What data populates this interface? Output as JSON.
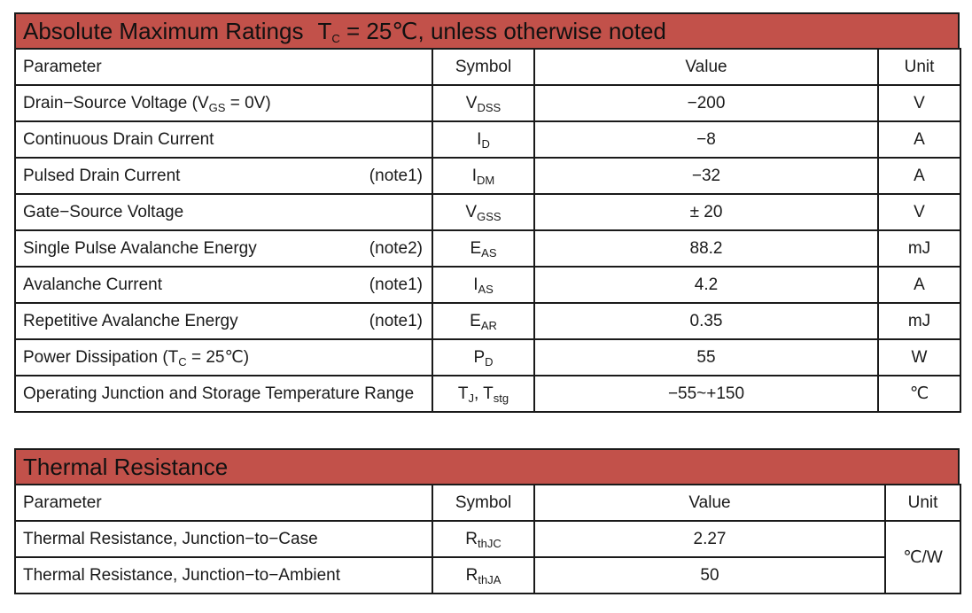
{
  "absolute_max": {
    "title": "Absolute Maximum Ratings",
    "cond_prefix": "T",
    "cond_sub": "C",
    "cond_suffix": " = 25℃, unless otherwise noted",
    "headers": {
      "parameter": "Parameter",
      "symbol": "Symbol",
      "value": "Value",
      "unit": "Unit"
    },
    "rows": [
      {
        "param": "Drain−Source Voltage (V",
        "param_sub": "GS",
        "param_tail": " = 0V)",
        "note": "",
        "sym": "V",
        "sym_sub": "DSS",
        "sym2": "",
        "sym2_sub": "",
        "value": "−200",
        "unit": "V"
      },
      {
        "param": "Continuous Drain Current",
        "param_sub": "",
        "param_tail": "",
        "note": "",
        "sym": "I",
        "sym_sub": "D",
        "sym2": "",
        "sym2_sub": "",
        "value": "−8",
        "unit": "A"
      },
      {
        "param": "Pulsed Drain Current",
        "param_sub": "",
        "param_tail": "",
        "note": "(note1)",
        "sym": "I",
        "sym_sub": "DM",
        "sym2": "",
        "sym2_sub": "",
        "value": "−32",
        "unit": "A"
      },
      {
        "param": "Gate−Source Voltage",
        "param_sub": "",
        "param_tail": "",
        "note": "",
        "sym": "V",
        "sym_sub": "GSS",
        "sym2": "",
        "sym2_sub": "",
        "value": "± 20",
        "unit": "V"
      },
      {
        "param": "Single Pulse Avalanche Energy",
        "param_sub": "",
        "param_tail": "",
        "note": "(note2)",
        "sym": "E",
        "sym_sub": "AS",
        "sym2": "",
        "sym2_sub": "",
        "value": "88.2",
        "unit": "mJ"
      },
      {
        "param": "Avalanche Current",
        "param_sub": "",
        "param_tail": "",
        "note": "(note1)",
        "sym": "I",
        "sym_sub": "AS",
        "sym2": "",
        "sym2_sub": "",
        "value": "4.2",
        "unit": "A"
      },
      {
        "param": "Repetitive Avalanche Energy",
        "param_sub": "",
        "param_tail": "",
        "note": "(note1)",
        "sym": "E",
        "sym_sub": "AR",
        "sym2": "",
        "sym2_sub": "",
        "value": "0.35",
        "unit": "mJ"
      },
      {
        "param": "Power Dissipation (T",
        "param_sub": "C",
        "param_tail": " = 25℃)",
        "note": "",
        "sym": "P",
        "sym_sub": "D",
        "sym2": "",
        "sym2_sub": "",
        "value": "55",
        "unit": "W"
      },
      {
        "param": "Operating Junction and Storage Temperature Range",
        "param_sub": "",
        "param_tail": "",
        "note": "",
        "sym": "T",
        "sym_sub": "J",
        "sym2": ", T",
        "sym2_sub": "stg",
        "value": "−55~+150",
        "unit": "℃"
      }
    ]
  },
  "thermal": {
    "title": "Thermal Resistance",
    "headers": {
      "parameter": "Parameter",
      "symbol": "Symbol",
      "value": "Value",
      "unit": "Unit"
    },
    "unit": "℃/W",
    "rows": [
      {
        "param": "Thermal Resistance, Junction−to−Case",
        "sym": "R",
        "sym_sub": "thJC",
        "value": "2.27"
      },
      {
        "param": "Thermal Resistance, Junction−to−Ambient",
        "sym": "R",
        "sym_sub": "thJA",
        "value": "50"
      }
    ]
  }
}
